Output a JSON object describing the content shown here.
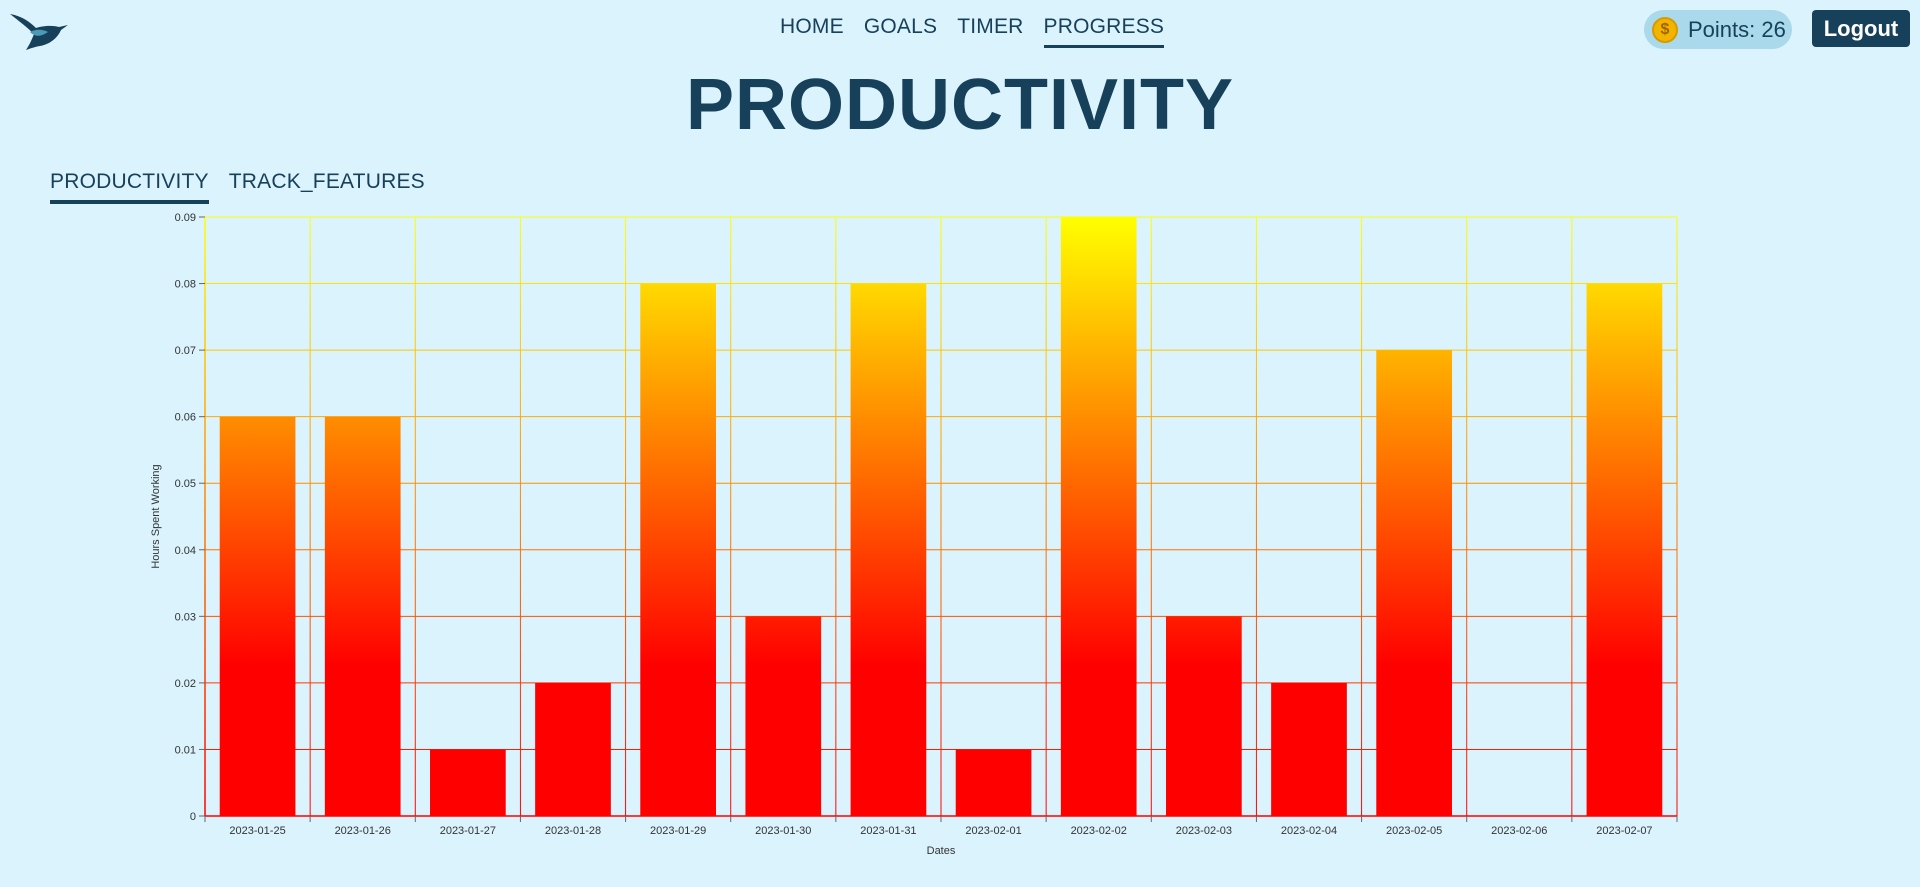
{
  "header": {
    "logo_icon": "hummingbird-icon",
    "nav": [
      {
        "label": "HOME",
        "active": false
      },
      {
        "label": "GOALS",
        "active": false
      },
      {
        "label": "TIMER",
        "active": false
      },
      {
        "label": "PROGRESS",
        "active": true
      }
    ],
    "points_label": "Points: 26",
    "points_icon": "coin-icon",
    "logout_label": "Logout"
  },
  "page": {
    "title": "PRODUCTIVITY"
  },
  "tabs": [
    {
      "label": "PRODUCTIVITY",
      "active": true
    },
    {
      "label": "TRACK_FEATURES",
      "active": false
    }
  ],
  "colors": {
    "background": "#dbf3fd",
    "primary": "#17415b",
    "bar_bottom": "#ff0000",
    "bar_top": "#ffff00",
    "grid_low": "#ff0000",
    "grid_high": "#ffff00",
    "coin": "#f3b400",
    "points_pill": "#a9d9ea"
  },
  "chart_data": {
    "type": "bar",
    "categories": [
      "2023-01-25",
      "2023-01-26",
      "2023-01-27",
      "2023-01-28",
      "2023-01-29",
      "2023-01-30",
      "2023-01-31",
      "2023-02-01",
      "2023-02-02",
      "2023-02-03",
      "2023-02-04",
      "2023-02-05",
      "2023-02-06",
      "2023-02-07"
    ],
    "values": [
      0.06,
      0.06,
      0.01,
      0.02,
      0.08,
      0.03,
      0.08,
      0.01,
      0.09,
      0.03,
      0.02,
      0.07,
      0,
      0.08
    ],
    "xlabel": "Dates",
    "ylabel": "Hours Spent Working",
    "ylim": [
      0,
      0.09
    ],
    "yticks": [
      0,
      0.01,
      0.02,
      0.03,
      0.04,
      0.05,
      0.06,
      0.07,
      0.08,
      0.09
    ],
    "ytick_labels": [
      "0",
      "0.01",
      "0.02",
      "0.03",
      "0.04",
      "0.05",
      "0.06",
      "0.07",
      "0.08",
      "0.09"
    ],
    "grid": true,
    "bar_fill": "vertical gradient red to yellow"
  }
}
